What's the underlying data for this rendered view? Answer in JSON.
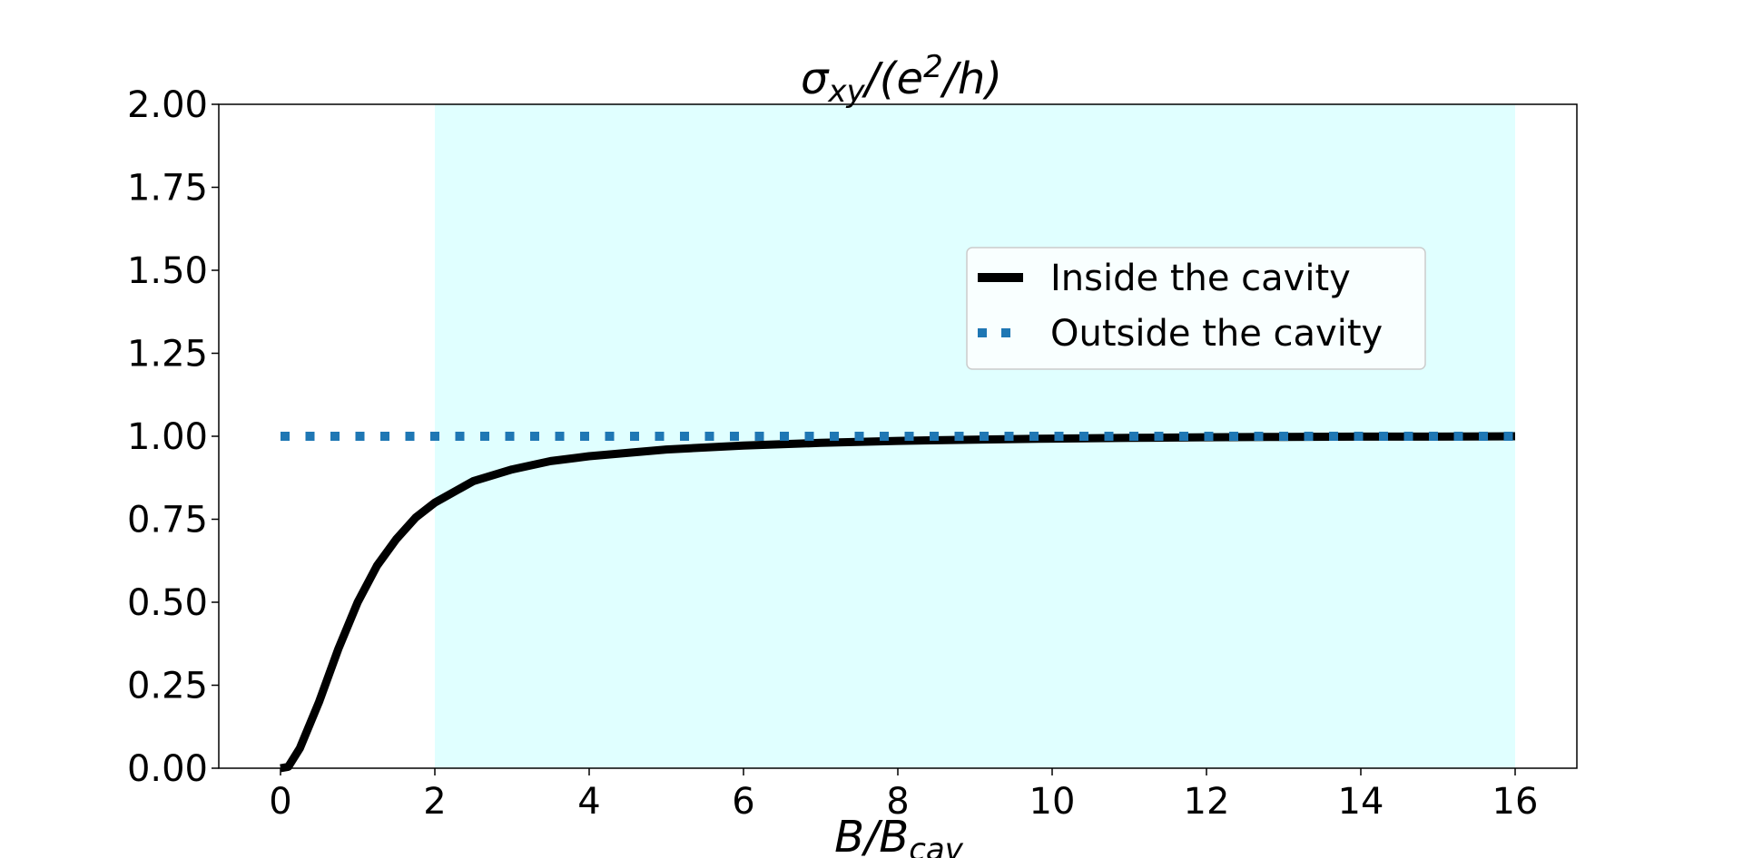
{
  "chart_data": {
    "type": "line",
    "title": {
      "symbol": "σ",
      "sub": "xy",
      "mid": "/(e",
      "sup": "2",
      "end": "/h)"
    },
    "xlabel": {
      "main": "B/B",
      "sub": "cav"
    },
    "xlim": [
      -0.8,
      16.8
    ],
    "ylim": [
      0.0,
      2.0
    ],
    "xticks": [
      0,
      2,
      4,
      6,
      8,
      10,
      12,
      14,
      16
    ],
    "yticks": [
      0.0,
      0.25,
      0.5,
      0.75,
      1.0,
      1.25,
      1.5,
      1.75,
      2.0
    ],
    "xtick_labels": [
      "0",
      "2",
      "4",
      "6",
      "8",
      "10",
      "12",
      "14",
      "16"
    ],
    "ytick_labels": [
      "0.00",
      "0.25",
      "0.50",
      "0.75",
      "1.00",
      "1.25",
      "1.50",
      "1.75",
      "2.00"
    ],
    "shaded_region": {
      "x": [
        2,
        16
      ],
      "color": "#e0ffff"
    },
    "grid": false,
    "legend_position": "upper-right",
    "series": [
      {
        "name": "Inside the cavity",
        "style": "solid",
        "color": "#000000",
        "x": [
          0,
          0.1,
          0.25,
          0.5,
          0.75,
          1.0,
          1.25,
          1.5,
          1.75,
          2.0,
          2.5,
          3.0,
          3.5,
          4.0,
          5.0,
          6.0,
          7.0,
          8.0,
          9.0,
          10.0,
          11.0,
          12.0,
          13.0,
          14.0,
          15.0,
          16.0
        ],
        "y": [
          0.0,
          0.004,
          0.06,
          0.2,
          0.36,
          0.5,
          0.61,
          0.69,
          0.755,
          0.8,
          0.865,
          0.9,
          0.925,
          0.94,
          0.96,
          0.972,
          0.98,
          0.986,
          0.99,
          0.993,
          0.995,
          0.997,
          0.998,
          0.999,
          0.999,
          1.0
        ]
      },
      {
        "name": "Outside the cavity",
        "style": "dotted",
        "color": "#1f77b4",
        "x": [
          0,
          16
        ],
        "y": [
          1.0,
          1.0
        ]
      }
    ]
  }
}
